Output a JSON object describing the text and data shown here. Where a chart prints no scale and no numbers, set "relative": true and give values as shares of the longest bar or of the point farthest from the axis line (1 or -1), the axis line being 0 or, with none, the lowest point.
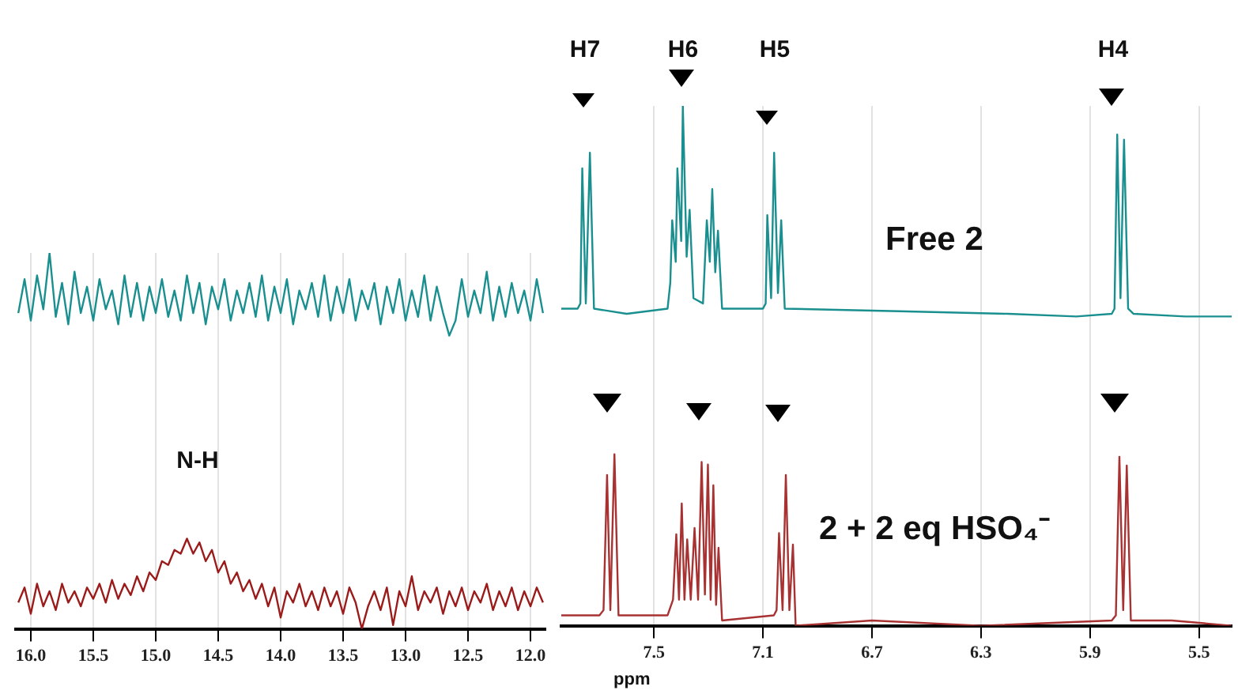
{
  "chart_data": [
    {
      "type": "line",
      "relative": true,
      "xlim": [
        16.12,
        11.88
      ],
      "xticks": [
        {
          "value": 16.0,
          "label": "16.0"
        },
        {
          "value": 15.5,
          "label": "15.5"
        },
        {
          "value": 15.0,
          "label": "15.0"
        },
        {
          "value": 14.5,
          "label": "14.5"
        },
        {
          "value": 14.0,
          "label": "14.0"
        },
        {
          "value": 13.5,
          "label": "13.5"
        },
        {
          "value": 13.0,
          "label": "13.0"
        },
        {
          "value": 12.5,
          "label": "12.5"
        },
        {
          "value": 12.0,
          "label": "12.0"
        }
      ],
      "grid": "x",
      "legend": false,
      "annotations": [
        "N-H"
      ],
      "x": [
        16.1,
        16.05,
        16.0,
        15.95,
        15.9,
        15.85,
        15.8,
        15.75,
        15.7,
        15.65,
        15.6,
        15.55,
        15.5,
        15.45,
        15.4,
        15.35,
        15.3,
        15.25,
        15.2,
        15.15,
        15.1,
        15.05,
        15.0,
        14.95,
        14.9,
        14.85,
        14.8,
        14.75,
        14.7,
        14.65,
        14.6,
        14.55,
        14.5,
        14.45,
        14.4,
        14.35,
        14.3,
        14.25,
        14.2,
        14.15,
        14.1,
        14.05,
        14.0,
        13.95,
        13.9,
        13.85,
        13.8,
        13.75,
        13.7,
        13.65,
        13.6,
        13.55,
        13.5,
        13.45,
        13.4,
        13.35,
        13.3,
        13.25,
        13.2,
        13.15,
        13.1,
        13.05,
        13.0,
        12.95,
        12.9,
        12.85,
        12.8,
        12.75,
        12.7,
        12.65,
        12.6,
        12.55,
        12.5,
        12.45,
        12.4,
        12.35,
        12.3,
        12.25,
        12.2,
        12.15,
        12.1,
        12.05,
        12.0,
        11.95,
        11.9
      ],
      "series": [
        {
          "color": "#1a8f8f",
          "values": [
            0.84,
            0.93,
            0.82,
            0.94,
            0.85,
            1.0,
            0.83,
            0.92,
            0.81,
            0.95,
            0.84,
            0.91,
            0.82,
            0.93,
            0.85,
            0.9,
            0.81,
            0.94,
            0.83,
            0.92,
            0.82,
            0.91,
            0.84,
            0.93,
            0.83,
            0.9,
            0.82,
            0.94,
            0.84,
            0.92,
            0.81,
            0.91,
            0.85,
            0.93,
            0.82,
            0.9,
            0.84,
            0.92,
            0.83,
            0.94,
            0.82,
            0.91,
            0.84,
            0.93,
            0.81,
            0.9,
            0.85,
            0.92,
            0.83,
            0.94,
            0.82,
            0.91,
            0.84,
            0.93,
            0.82,
            0.9,
            0.85,
            0.92,
            0.81,
            0.91,
            0.84,
            0.93,
            0.82,
            0.9,
            0.83,
            0.94,
            0.82,
            0.91,
            0.84,
            0.78,
            0.82,
            0.93,
            0.83,
            0.9,
            0.84,
            0.95,
            0.82,
            0.91,
            0.83,
            0.92,
            0.84,
            0.9,
            0.82,
            0.93,
            0.84
          ]
        },
        {
          "color": "#9b1b1b",
          "values": [
            0.07,
            0.11,
            0.04,
            0.12,
            0.06,
            0.1,
            0.05,
            0.12,
            0.07,
            0.1,
            0.06,
            0.11,
            0.08,
            0.12,
            0.07,
            0.13,
            0.08,
            0.12,
            0.09,
            0.14,
            0.1,
            0.15,
            0.13,
            0.18,
            0.17,
            0.21,
            0.2,
            0.24,
            0.2,
            0.23,
            0.18,
            0.21,
            0.15,
            0.18,
            0.12,
            0.15,
            0.1,
            0.13,
            0.08,
            0.12,
            0.06,
            0.11,
            0.03,
            0.1,
            0.07,
            0.12,
            0.06,
            0.1,
            0.05,
            0.11,
            0.06,
            0.1,
            0.04,
            0.11,
            0.07,
            0.0,
            0.06,
            0.1,
            0.05,
            0.11,
            0.01,
            0.1,
            0.06,
            0.14,
            0.05,
            0.1,
            0.07,
            0.11,
            0.04,
            0.1,
            0.06,
            0.11,
            0.05,
            0.1,
            0.07,
            0.12,
            0.05,
            0.1,
            0.06,
            0.11,
            0.05,
            0.1,
            0.06,
            0.11,
            0.07
          ]
        }
      ]
    },
    {
      "type": "line",
      "relative": true,
      "xlim": [
        7.84,
        5.38
      ],
      "xticks": [
        7.5,
        7.1,
        6.7,
        6.3,
        5.9,
        5.5
      ],
      "xlabel": "ppm",
      "grid": "x",
      "legend": false,
      "annotations": [
        "H7",
        "H6",
        "H5",
        "H4"
      ],
      "series": [
        {
          "name": "Free 2",
          "color": "#1a8f8f",
          "x": [
            7.84,
            7.78,
            7.77,
            7.763,
            7.75,
            7.735,
            7.72,
            7.6,
            7.45,
            7.44,
            7.433,
            7.42,
            7.414,
            7.4,
            7.394,
            7.38,
            7.369,
            7.355,
            7.32,
            7.306,
            7.295,
            7.286,
            7.275,
            7.265,
            7.25,
            7.1,
            7.09,
            7.084,
            7.07,
            7.059,
            7.045,
            7.033,
            7.02,
            6.6,
            6.2,
            5.95,
            5.82,
            5.81,
            5.8,
            5.788,
            5.775,
            5.76,
            5.74,
            5.55,
            5.38
          ],
          "values": [
            0.61,
            0.61,
            0.62,
            0.88,
            0.62,
            0.91,
            0.61,
            0.6,
            0.61,
            0.66,
            0.78,
            0.7,
            0.88,
            0.74,
            1.0,
            0.71,
            0.8,
            0.63,
            0.62,
            0.78,
            0.7,
            0.84,
            0.68,
            0.76,
            0.61,
            0.61,
            0.62,
            0.79,
            0.63,
            0.91,
            0.64,
            0.78,
            0.61,
            0.605,
            0.6,
            0.595,
            0.6,
            0.61,
            0.945,
            0.63,
            0.935,
            0.61,
            0.6,
            0.595,
            0.595
          ]
        },
        {
          "name": "2 + 2 eq HSO₄⁻",
          "color": "#a83232",
          "x": [
            7.84,
            7.7,
            7.685,
            7.672,
            7.66,
            7.645,
            7.63,
            7.45,
            7.43,
            7.418,
            7.408,
            7.398,
            7.388,
            7.378,
            7.365,
            7.351,
            7.338,
            7.325,
            7.313,
            7.302,
            7.292,
            7.282,
            7.272,
            7.263,
            7.25,
            7.06,
            7.05,
            7.041,
            7.028,
            7.016,
            7.003,
            6.99,
            6.98,
            6.7,
            6.3,
            5.82,
            5.805,
            5.792,
            5.778,
            5.765,
            5.75,
            5.6,
            5.38
          ],
          "values": [
            0.02,
            0.02,
            0.03,
            0.29,
            0.03,
            0.33,
            0.02,
            0.02,
            0.05,
            0.176,
            0.05,
            0.235,
            0.05,
            0.166,
            0.05,
            0.188,
            0.05,
            0.315,
            0.06,
            0.31,
            0.05,
            0.27,
            0.04,
            0.15,
            0.01,
            0.02,
            0.03,
            0.178,
            0.03,
            0.29,
            0.03,
            0.156,
            0.0,
            0.01,
            0.0,
            0.01,
            0.02,
            0.325,
            0.03,
            0.308,
            0.01,
            0.01,
            0.0
          ]
        }
      ]
    }
  ]
}
